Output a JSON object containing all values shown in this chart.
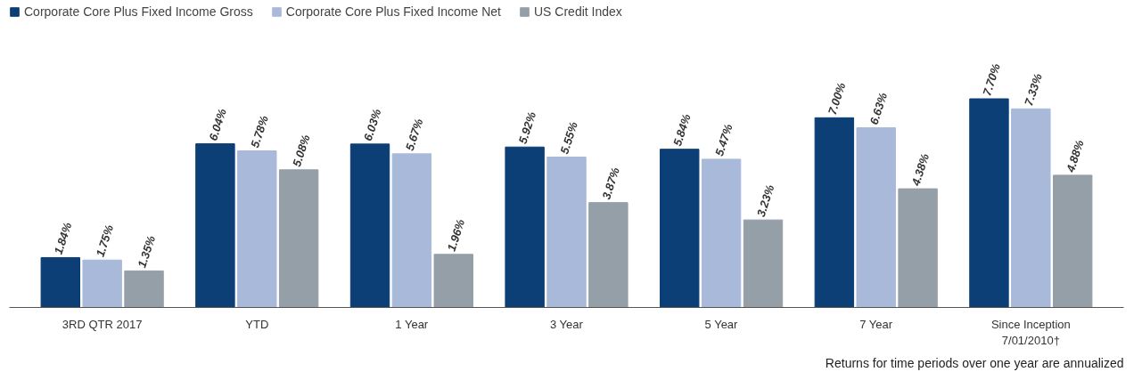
{
  "chart_data": {
    "type": "bar",
    "categories": [
      "3RD QTR 2017",
      "YTD",
      "1 Year",
      "3 Year",
      "5 Year",
      "7 Year",
      "Since Inception\n7/01/2010†"
    ],
    "series": [
      {
        "name": "Corporate Core Plus Fixed Income Gross",
        "color": "#0b3f75",
        "values": [
          1.84,
          6.04,
          6.03,
          5.92,
          5.84,
          7.0,
          7.7
        ],
        "value_labels": [
          "1.84%",
          "6.04%",
          "6.03%",
          "5.92%",
          "5.84%",
          "7.00%",
          "7.70%"
        ]
      },
      {
        "name": "Corporate Core Plus Fixed Income Net",
        "color": "#a9b9d9",
        "values": [
          1.75,
          5.78,
          5.67,
          5.55,
          5.47,
          6.63,
          7.33
        ],
        "value_labels": [
          "1.75%",
          "5.78%",
          "5.67%",
          "5.55%",
          "5.47%",
          "6.63%",
          "7.33%"
        ]
      },
      {
        "name": "US Credit Index",
        "color": "#949fa8",
        "values": [
          1.35,
          5.08,
          1.96,
          3.87,
          3.23,
          4.38,
          4.88
        ],
        "value_labels": [
          "1.35%",
          "5.08%",
          "1.96%",
          "3.87%",
          "3.23%",
          "4.38%",
          "4.88%"
        ]
      }
    ],
    "legend": "top left",
    "annotations": [
      "Returns for time periods over one year are annualized"
    ]
  }
}
